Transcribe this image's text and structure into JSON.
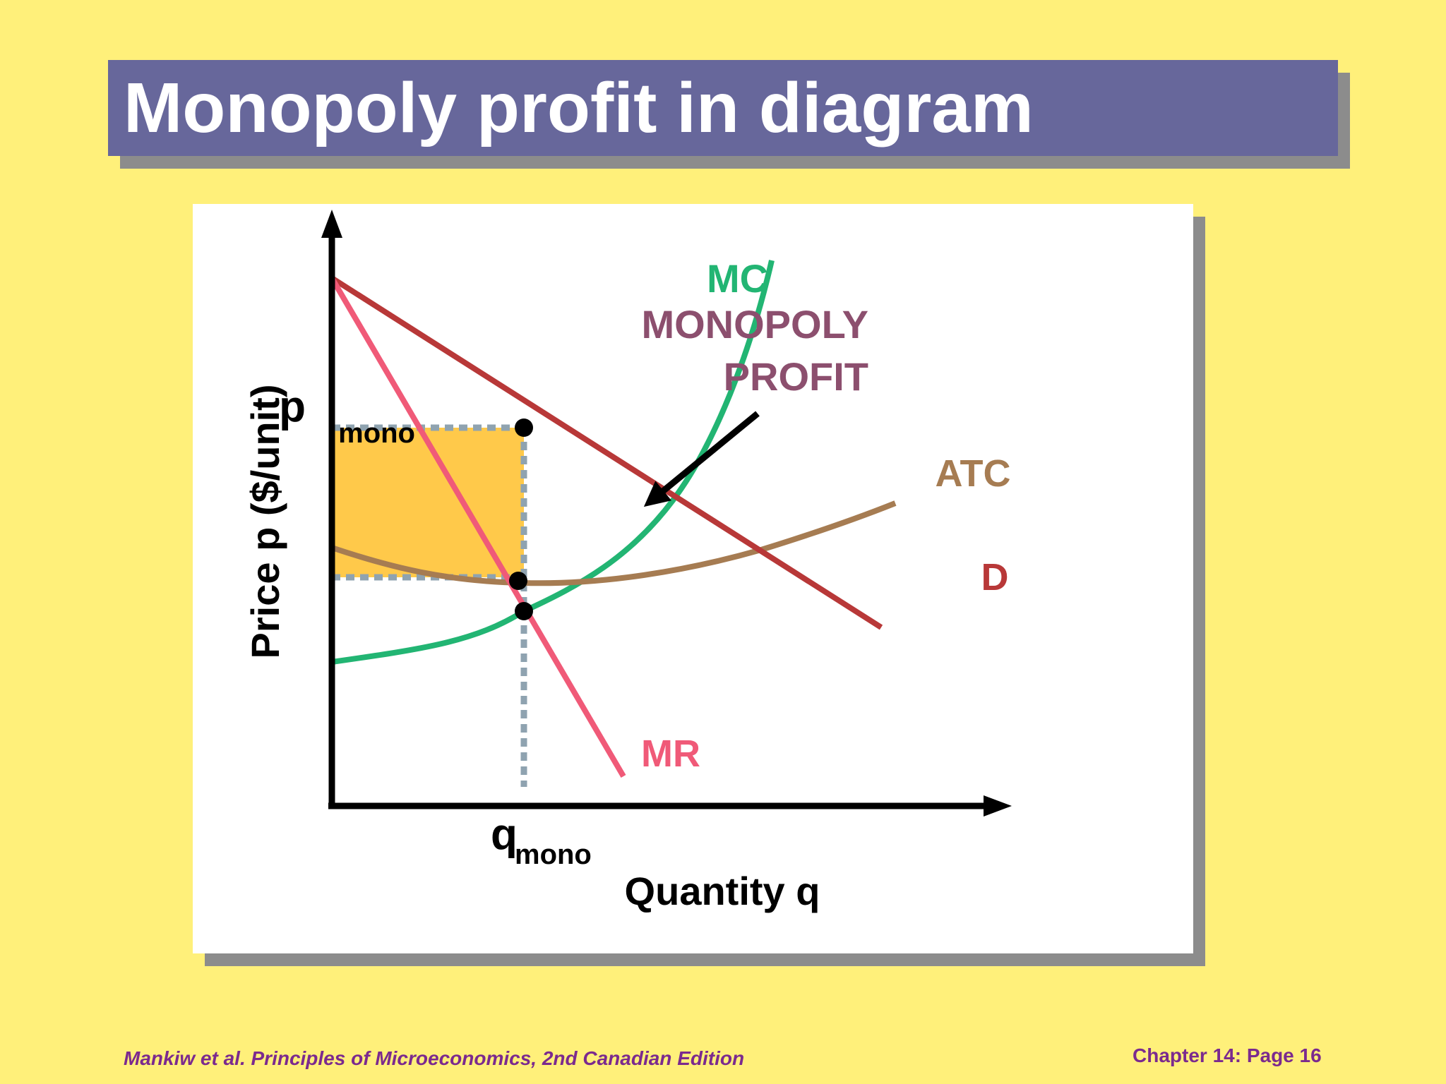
{
  "slide": {
    "title": "Monopoly profit in diagram",
    "footer_left": "Mankiw et al. Principles of Microeconomics, 2nd Canadian Edition",
    "footer_right": "Chapter 14: Page 16"
  },
  "diagram": {
    "y_axis_label": "Price p ($/unit)",
    "x_axis_label": "Quantity q",
    "p_label_main": "p",
    "p_label_sub": "mono",
    "q_label_main": "q",
    "q_label_sub": "mono",
    "profit_label_line1": "MONOPOLY",
    "profit_label_line2": "PROFIT",
    "curves": {
      "mc": "MC",
      "atc": "ATC",
      "d": "D",
      "mr": "MR"
    },
    "colors": {
      "background": "#FFF07A",
      "title_bar": "#67679B",
      "profit_area": "#FFC94A",
      "mc": "#22B573",
      "atc": "#A67C52",
      "demand": "#B83838",
      "mr": "#F05A78",
      "dashed_guides": "#8FA3B0",
      "profit_text": "#8C4F6E",
      "footer_text": "#7B2A8E"
    }
  }
}
